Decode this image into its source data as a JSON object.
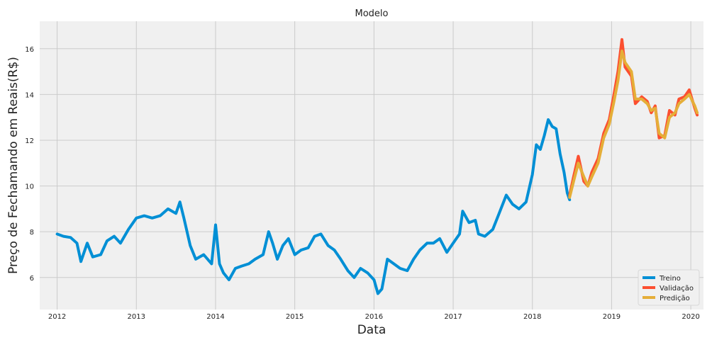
{
  "chart_data": {
    "type": "line",
    "title": "Modelo",
    "xlabel": "Data",
    "ylabel": "Preço de Fechamando em Reais(R$)",
    "xlim": [
      2011.78,
      2020.16
    ],
    "ylim": [
      4.6,
      17.2
    ],
    "x_ticks": [
      "2012",
      "2013",
      "2014",
      "2015",
      "2016",
      "2017",
      "2018",
      "2019",
      "2020"
    ],
    "y_ticks": [
      "6",
      "8",
      "10",
      "12",
      "14",
      "16"
    ],
    "grid": true,
    "background": "#f0f0f0",
    "legend_position": "bottom-right",
    "series": [
      {
        "name": "Treino",
        "color": "#008fd5",
        "points": [
          [
            2012.0,
            7.9
          ],
          [
            2012.08,
            7.8
          ],
          [
            2012.17,
            7.75
          ],
          [
            2012.25,
            7.5
          ],
          [
            2012.3,
            6.7
          ],
          [
            2012.38,
            7.5
          ],
          [
            2012.45,
            6.9
          ],
          [
            2012.55,
            7.0
          ],
          [
            2012.63,
            7.6
          ],
          [
            2012.72,
            7.8
          ],
          [
            2012.8,
            7.5
          ],
          [
            2012.9,
            8.1
          ],
          [
            2013.0,
            8.6
          ],
          [
            2013.1,
            8.7
          ],
          [
            2013.2,
            8.6
          ],
          [
            2013.3,
            8.7
          ],
          [
            2013.4,
            9.0
          ],
          [
            2013.5,
            8.8
          ],
          [
            2013.55,
            9.3
          ],
          [
            2013.6,
            8.6
          ],
          [
            2013.68,
            7.4
          ],
          [
            2013.75,
            6.8
          ],
          [
            2013.85,
            7.0
          ],
          [
            2013.95,
            6.6
          ],
          [
            2014.0,
            8.3
          ],
          [
            2014.05,
            6.6
          ],
          [
            2014.1,
            6.2
          ],
          [
            2014.17,
            5.9
          ],
          [
            2014.25,
            6.4
          ],
          [
            2014.33,
            6.5
          ],
          [
            2014.42,
            6.6
          ],
          [
            2014.5,
            6.8
          ],
          [
            2014.6,
            7.0
          ],
          [
            2014.67,
            8.0
          ],
          [
            2014.72,
            7.5
          ],
          [
            2014.78,
            6.8
          ],
          [
            2014.85,
            7.4
          ],
          [
            2014.92,
            7.7
          ],
          [
            2015.0,
            7.0
          ],
          [
            2015.08,
            7.2
          ],
          [
            2015.17,
            7.3
          ],
          [
            2015.25,
            7.8
          ],
          [
            2015.33,
            7.9
          ],
          [
            2015.42,
            7.4
          ],
          [
            2015.5,
            7.2
          ],
          [
            2015.58,
            6.8
          ],
          [
            2015.67,
            6.3
          ],
          [
            2015.75,
            6.0
          ],
          [
            2015.83,
            6.4
          ],
          [
            2015.92,
            6.2
          ],
          [
            2016.0,
            5.9
          ],
          [
            2016.05,
            5.3
          ],
          [
            2016.1,
            5.5
          ],
          [
            2016.17,
            6.8
          ],
          [
            2016.25,
            6.6
          ],
          [
            2016.33,
            6.4
          ],
          [
            2016.42,
            6.3
          ],
          [
            2016.5,
            6.8
          ],
          [
            2016.58,
            7.2
          ],
          [
            2016.67,
            7.5
          ],
          [
            2016.75,
            7.5
          ],
          [
            2016.83,
            7.7
          ],
          [
            2016.92,
            7.1
          ],
          [
            2017.0,
            7.5
          ],
          [
            2017.08,
            7.9
          ],
          [
            2017.12,
            8.9
          ],
          [
            2017.2,
            8.4
          ],
          [
            2017.28,
            8.5
          ],
          [
            2017.32,
            7.9
          ],
          [
            2017.4,
            7.8
          ],
          [
            2017.5,
            8.1
          ],
          [
            2017.58,
            8.8
          ],
          [
            2017.67,
            9.6
          ],
          [
            2017.75,
            9.2
          ],
          [
            2017.83,
            9.0
          ],
          [
            2017.92,
            9.3
          ],
          [
            2018.0,
            10.5
          ],
          [
            2018.05,
            11.8
          ],
          [
            2018.1,
            11.6
          ],
          [
            2018.15,
            12.2
          ],
          [
            2018.2,
            12.9
          ],
          [
            2018.25,
            12.6
          ],
          [
            2018.3,
            12.5
          ],
          [
            2018.35,
            11.4
          ],
          [
            2018.4,
            10.6
          ],
          [
            2018.44,
            9.7
          ],
          [
            2018.47,
            9.4
          ]
        ]
      },
      {
        "name": "Validação",
        "color": "#fc4f30",
        "points": [
          [
            2018.47,
            9.6
          ],
          [
            2018.52,
            10.4
          ],
          [
            2018.58,
            11.3
          ],
          [
            2018.65,
            10.2
          ],
          [
            2018.7,
            10.0
          ],
          [
            2018.75,
            10.6
          ],
          [
            2018.83,
            11.2
          ],
          [
            2018.9,
            12.3
          ],
          [
            2018.97,
            12.9
          ],
          [
            2019.03,
            14.0
          ],
          [
            2019.08,
            15.0
          ],
          [
            2019.13,
            16.4
          ],
          [
            2019.17,
            15.2
          ],
          [
            2019.25,
            14.8
          ],
          [
            2019.3,
            13.6
          ],
          [
            2019.38,
            13.9
          ],
          [
            2019.45,
            13.7
          ],
          [
            2019.5,
            13.2
          ],
          [
            2019.55,
            13.5
          ],
          [
            2019.6,
            12.1
          ],
          [
            2019.67,
            12.2
          ],
          [
            2019.73,
            13.3
          ],
          [
            2019.8,
            13.1
          ],
          [
            2019.85,
            13.8
          ],
          [
            2019.92,
            13.9
          ],
          [
            2019.98,
            14.2
          ],
          [
            2020.05,
            13.4
          ],
          [
            2020.08,
            13.1
          ]
        ]
      },
      {
        "name": "Predição",
        "color": "#e5ae38",
        "points": [
          [
            2018.47,
            9.5
          ],
          [
            2018.52,
            10.2
          ],
          [
            2018.58,
            11.0
          ],
          [
            2018.65,
            10.4
          ],
          [
            2018.7,
            10.0
          ],
          [
            2018.75,
            10.4
          ],
          [
            2018.83,
            11.0
          ],
          [
            2018.9,
            12.1
          ],
          [
            2018.97,
            12.7
          ],
          [
            2019.03,
            13.7
          ],
          [
            2019.08,
            14.6
          ],
          [
            2019.13,
            15.9
          ],
          [
            2019.17,
            15.4
          ],
          [
            2019.25,
            15.0
          ],
          [
            2019.3,
            13.8
          ],
          [
            2019.38,
            13.8
          ],
          [
            2019.45,
            13.6
          ],
          [
            2019.5,
            13.3
          ],
          [
            2019.55,
            13.4
          ],
          [
            2019.6,
            12.3
          ],
          [
            2019.67,
            12.1
          ],
          [
            2019.73,
            13.0
          ],
          [
            2019.8,
            13.2
          ],
          [
            2019.85,
            13.6
          ],
          [
            2019.92,
            13.8
          ],
          [
            2019.98,
            14.0
          ],
          [
            2020.05,
            13.5
          ],
          [
            2020.08,
            13.2
          ]
        ]
      }
    ]
  }
}
